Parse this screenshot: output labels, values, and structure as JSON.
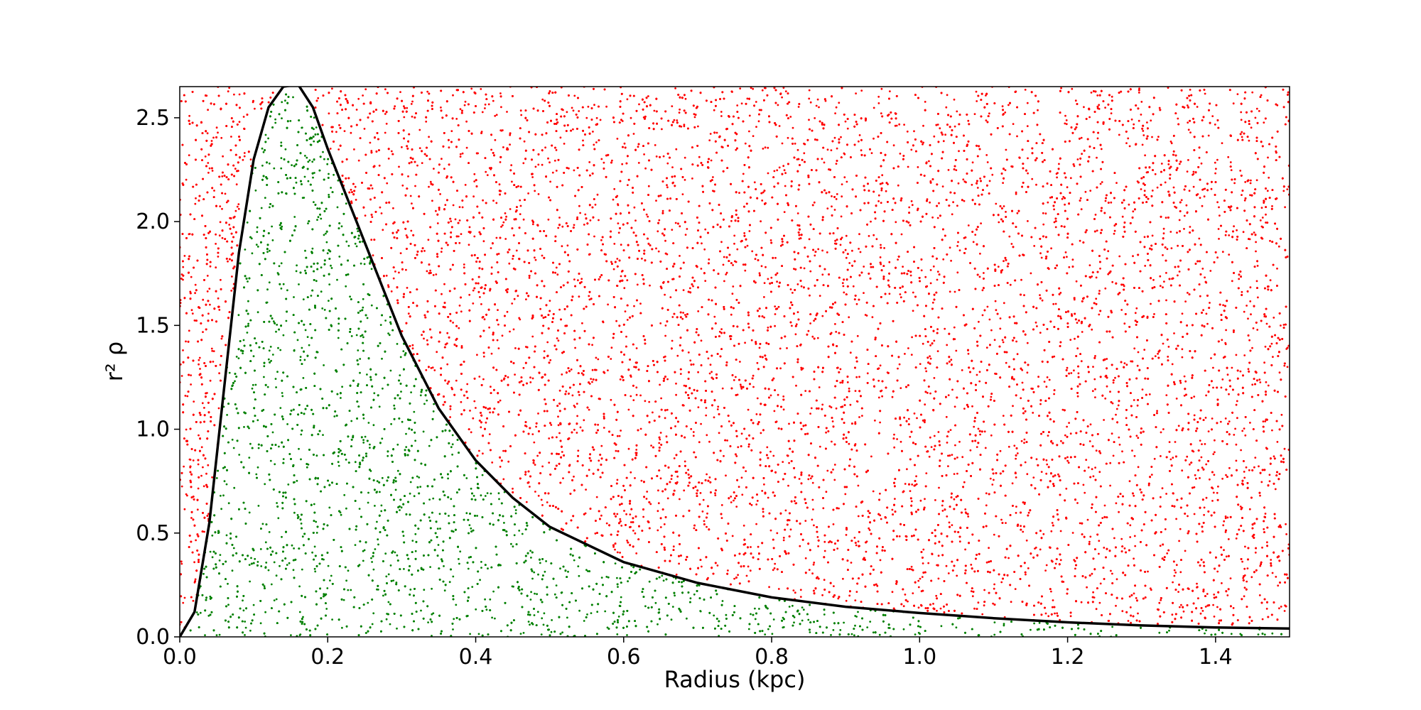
{
  "chart_data": {
    "type": "scatter",
    "title": "",
    "xlabel": "Radius (kpc)",
    "ylabel": "r² ρ",
    "xlim": [
      0.0,
      1.5
    ],
    "ylim": [
      0.0,
      2.65
    ],
    "xticks": [
      0.0,
      0.2,
      0.4,
      0.6,
      0.8,
      1.0,
      1.2,
      1.4
    ],
    "xtick_labels": [
      "0.0",
      "0.2",
      "0.4",
      "0.6",
      "0.8",
      "1.0",
      "1.2",
      "1.4"
    ],
    "yticks": [
      0.0,
      0.5,
      1.0,
      1.5,
      2.0,
      2.5
    ],
    "ytick_labels": [
      "0.0",
      "0.5",
      "1.0",
      "1.5",
      "2.0",
      "2.5"
    ],
    "grid": false,
    "legend": "none",
    "curve": {
      "color": "#000000",
      "x": [
        0.0,
        0.02,
        0.04,
        0.06,
        0.08,
        0.1,
        0.12,
        0.14,
        0.16,
        0.18,
        0.2,
        0.25,
        0.3,
        0.35,
        0.4,
        0.45,
        0.5,
        0.6,
        0.7,
        0.8,
        0.9,
        1.0,
        1.1,
        1.2,
        1.3,
        1.4,
        1.5
      ],
      "y": [
        0.0,
        0.12,
        0.55,
        1.2,
        1.85,
        2.3,
        2.55,
        2.65,
        2.66,
        2.55,
        2.35,
        1.9,
        1.45,
        1.1,
        0.85,
        0.67,
        0.53,
        0.36,
        0.26,
        0.19,
        0.145,
        0.115,
        0.09,
        0.07,
        0.055,
        0.045,
        0.04
      ]
    },
    "accepted_points": {
      "color": "#008000",
      "description_region": "below curve"
    },
    "rejected_points": {
      "color": "#ff0000",
      "description_region": "above curve"
    }
  }
}
